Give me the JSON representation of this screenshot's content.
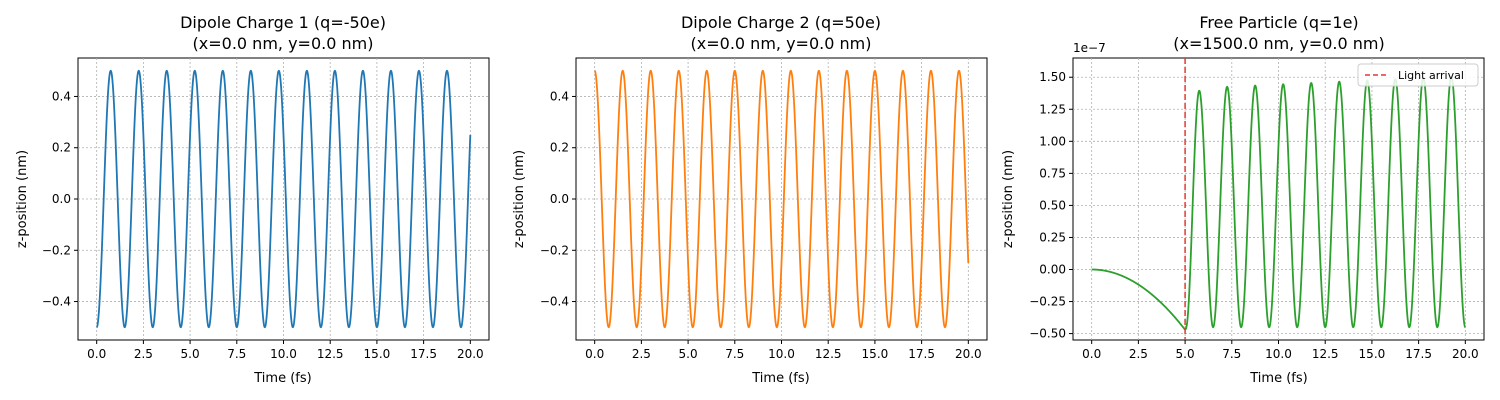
{
  "chart_data": [
    {
      "type": "line",
      "title_line1": "Dipole Charge 1 (q=-50e)",
      "title_line2": "(x=0.0 nm, y=0.0 nm)",
      "xlabel": "Time (fs)",
      "ylabel": "z-position (nm)",
      "xlim": [
        -1.0,
        21.0
      ],
      "ylim": [
        -0.55,
        0.55
      ],
      "xticks": [
        0,
        2.5,
        5,
        7.5,
        10,
        12.5,
        15,
        17.5,
        20
      ],
      "xtick_labels": [
        "0.0",
        "2.5",
        "5.0",
        "7.5",
        "10.0",
        "12.5",
        "15.0",
        "17.5",
        "20.0"
      ],
      "yticks": [
        -0.4,
        -0.2,
        0.0,
        0.2,
        0.4
      ],
      "ytick_labels": [
        "−0.4",
        "−0.2",
        "0.0",
        "0.2",
        "0.4"
      ],
      "grid": true,
      "color": "#1f77b4",
      "series": [
        {
          "description": "z(t) = -0.5·cos(2π·t/1.5), t from 0 to 20 fs",
          "amplitude": -0.5,
          "period_fs": 1.5,
          "t_range": [
            0,
            20
          ]
        }
      ]
    },
    {
      "type": "line",
      "title_line1": "Dipole Charge 2 (q=50e)",
      "title_line2": "(x=0.0 nm, y=0.0 nm)",
      "xlabel": "Time (fs)",
      "ylabel": "z-position (nm)",
      "xlim": [
        -1.0,
        21.0
      ],
      "ylim": [
        -0.55,
        0.55
      ],
      "xticks": [
        0,
        2.5,
        5,
        7.5,
        10,
        12.5,
        15,
        17.5,
        20
      ],
      "xtick_labels": [
        "0.0",
        "2.5",
        "5.0",
        "7.5",
        "10.0",
        "12.5",
        "15.0",
        "17.5",
        "20.0"
      ],
      "yticks": [
        -0.4,
        -0.2,
        0.0,
        0.2,
        0.4
      ],
      "ytick_labels": [
        "−0.4",
        "−0.2",
        "0.0",
        "0.2",
        "0.4"
      ],
      "grid": true,
      "color": "#ff7f0e",
      "series": [
        {
          "description": "z(t) = 0.5·cos(2π·t/1.5), t from 0 to 20 fs",
          "amplitude": 0.5,
          "period_fs": 1.5,
          "t_range": [
            0,
            20
          ]
        }
      ]
    },
    {
      "type": "line",
      "title_line1": "Free Particle (q=1e)",
      "title_line2": "(x=1500.0 nm, y=0.0 nm)",
      "xlabel": "Time (fs)",
      "ylabel": "z-position (nm)",
      "offset_label": "1e−7",
      "xlim": [
        -1.0,
        21.0
      ],
      "ylim": [
        -0.55,
        1.65
      ],
      "xticks": [
        0,
        2.5,
        5,
        7.5,
        10,
        12.5,
        15,
        17.5,
        20
      ],
      "xtick_labels": [
        "0.0",
        "2.5",
        "5.0",
        "7.5",
        "10.0",
        "12.5",
        "15.0",
        "17.5",
        "20.0"
      ],
      "yticks": [
        -0.5,
        -0.25,
        0.0,
        0.25,
        0.5,
        0.75,
        1.0,
        1.25,
        1.5
      ],
      "ytick_labels": [
        "−0.50",
        "−0.25",
        "0.00",
        "0.25",
        "0.50",
        "0.75",
        "1.00",
        "1.25",
        "1.50"
      ],
      "grid": true,
      "color": "#2ca02c",
      "vline": {
        "x": 5.0,
        "color": "#e03c31",
        "label": "Light arrival"
      },
      "legend": {
        "placement": "top-right",
        "entries": [
          "Light arrival"
        ]
      },
      "series": [
        {
          "description": "Before t=5 fs: smooth decline z = -0.47·(t/5)^2 (×1e-7 nm). After t=5: oscillation with period 1.5 fs, troughs near -0.45, peaks rising from 1.41 to 1.51 (×1e-7 nm), ending near -0.30 at t=20.",
          "pre_coeff": -0.47,
          "period_fs": 1.5,
          "peak_start": 1.41,
          "peak_end": 1.51,
          "trough": -0.45,
          "center_start": 0.48,
          "center_end": 0.53,
          "t_range": [
            0,
            20
          ]
        }
      ]
    }
  ]
}
